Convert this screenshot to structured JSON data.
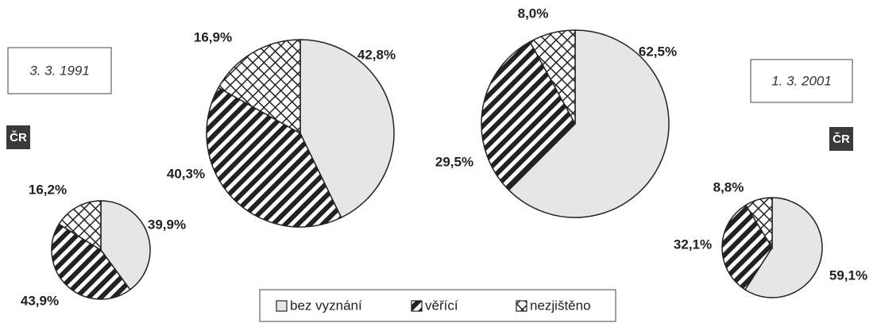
{
  "chart_data": {
    "type": "pie",
    "categories": [
      "bez vyznání",
      "věřící",
      "nezjištěno"
    ],
    "patterns": [
      "solid",
      "diagonal",
      "crosshatch"
    ],
    "color": "#e6e6e6",
    "series": [
      {
        "name": "ČR",
        "values": [
          39.9,
          43.9,
          16.2
        ],
        "value_labels": [
          "39,9%",
          "43,9%",
          "16,2%"
        ]
      },
      {
        "values": [
          42.8,
          40.3,
          16.9
        ],
        "value_labels": [
          "42,8%",
          "40,3%",
          "16,9%"
        ]
      },
      {
        "values": [
          62.5,
          29.5,
          8.0
        ],
        "value_labels": [
          "62,5%",
          "29,5%",
          "8,0%"
        ]
      },
      {
        "name": "ČR",
        "values": [
          59.1,
          32.1,
          8.8
        ],
        "value_labels": [
          "59,1%",
          "32,1%",
          "8,8%"
        ]
      }
    ],
    "annotations": [
      "3. 3. 1991",
      "1. 3. 2001"
    ]
  }
}
